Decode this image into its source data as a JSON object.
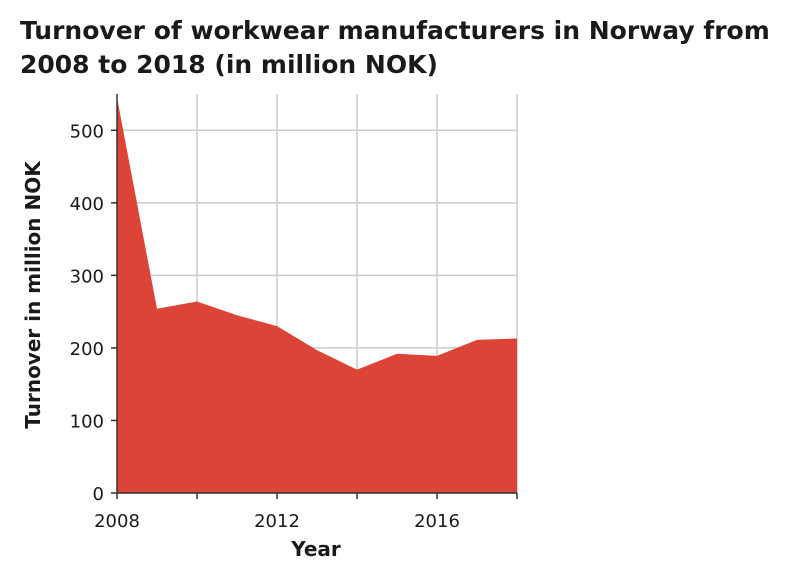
{
  "chart_data": {
    "type": "area",
    "title": "Turnover of workwear manufacturers in Norway from 2008 to 2018 (in million NOK)",
    "xlabel": "Year",
    "ylabel": "Turnover in million NOK",
    "x": [
      2008,
      2009,
      2010,
      2011,
      2012,
      2013,
      2014,
      2015,
      2016,
      2017,
      2018
    ],
    "series": [
      {
        "values": [
          545,
          254,
          264,
          245,
          230,
          197,
          170,
          192,
          189,
          211,
          213
        ]
      }
    ],
    "xlim": [
      2008,
      2018
    ],
    "ylim": [
      0,
      550
    ],
    "xticks": [
      "2008",
      "2012",
      "2016"
    ],
    "yticks": [
      "0",
      "100",
      "200",
      "300",
      "400",
      "500"
    ],
    "x_gridlines": [
      2010,
      2012,
      2014,
      2016,
      2018
    ],
    "y_gridlines": [
      0,
      100,
      200,
      300,
      400,
      500
    ],
    "grid": true,
    "fill_color": "#db4437",
    "grid_color": "#cccccc"
  }
}
